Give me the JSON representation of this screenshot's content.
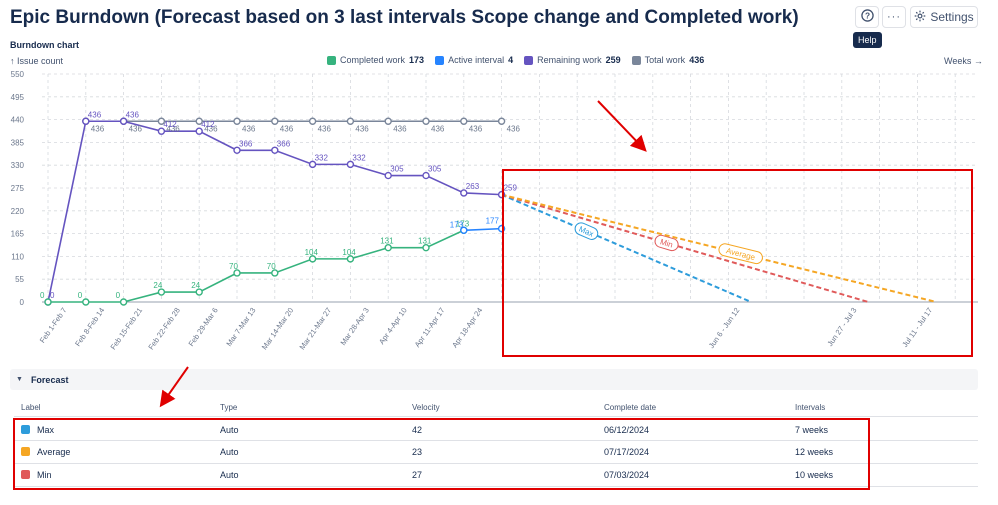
{
  "header": {
    "title": "Epic Burndown (Forecast based on 3 last intervals Scope change and Completed work)",
    "help_tooltip": "Help",
    "settings_label": "Settings",
    "more_label": "···"
  },
  "chart_header": {
    "title": "Burndown chart",
    "y_unit": "Issue count",
    "x_unit": "Weeks"
  },
  "legend": [
    {
      "label": "Completed work",
      "value": "173",
      "color": "#36b37e"
    },
    {
      "label": "Active interval",
      "value": "4",
      "color": "#2684ff"
    },
    {
      "label": "Remaining work",
      "value": "259",
      "color": "#6554c0"
    },
    {
      "label": "Total work",
      "value": "436",
      "color": "#7a869a"
    }
  ],
  "chart_data": {
    "type": "line",
    "ylim": [
      0,
      550
    ],
    "yticks": [
      0,
      55,
      110,
      165,
      220,
      275,
      330,
      385,
      440,
      495,
      550
    ],
    "grid": true,
    "categories": [
      "Feb 1-Feb 7",
      "Feb 8-Feb 14",
      "Feb 15-Feb 21",
      "Feb 22-Feb 28",
      "Feb 29-Mar 6",
      "Mar 7-Mar 13",
      "Mar 14-Mar 20",
      "Mar 21-Mar 27",
      "Mar 28-Apr 3",
      "Apr 4-Apr 10",
      "Apr 11-Apr 17",
      "Apr 18-Apr 24"
    ],
    "forecast_categories": [
      "Jun 6 - Jun 12",
      "Jun 27 - Jul 3",
      "Jul 11 - Jul 17"
    ],
    "series": [
      {
        "name": "Total work",
        "color": "#7a869a",
        "x": [
          1,
          2,
          3,
          4,
          5,
          6,
          7,
          8,
          9,
          10,
          11,
          12
        ],
        "values": [
          436,
          436,
          436,
          436,
          436,
          436,
          436,
          436,
          436,
          436,
          436,
          436
        ]
      },
      {
        "name": "Remaining work",
        "color": "#6554c0",
        "x": [
          0,
          1,
          2,
          3,
          4,
          5,
          6,
          7,
          8,
          9,
          10,
          11,
          12
        ],
        "values": [
          0,
          436,
          436,
          412,
          412,
          366,
          366,
          332,
          332,
          305,
          305,
          263,
          259
        ]
      },
      {
        "name": "Completed work",
        "color": "#36b37e",
        "x": [
          0,
          1,
          2,
          3,
          4,
          5,
          6,
          7,
          8,
          9,
          10,
          11
        ],
        "values": [
          0,
          0,
          0,
          24,
          24,
          70,
          70,
          104,
          104,
          131,
          131,
          173
        ]
      },
      {
        "name": "Active interval",
        "color": "#2684ff",
        "x": [
          11,
          12
        ],
        "values": [
          173,
          177
        ]
      }
    ],
    "labels": {
      "total": [
        436,
        436,
        436,
        436,
        436,
        436,
        436,
        436,
        436,
        436,
        436,
        436
      ],
      "remaining": [
        "0",
        "436",
        "436",
        "412",
        "412",
        "366",
        "366",
        "332",
        "332",
        "305",
        "305",
        "263",
        "259"
      ],
      "completed": [
        "0",
        "0",
        "0",
        "24",
        "24",
        "70",
        "70",
        "104",
        "104",
        "131",
        "131",
        "173"
      ],
      "active": [
        "173",
        "177"
      ]
    },
    "forecasts": [
      {
        "name": "Max",
        "color": "#2d9cdb",
        "from_x": 12,
        "from_y": 259,
        "to_x": 18.6,
        "to_y": 0
      },
      {
        "name": "Min",
        "color": "#e05a5a",
        "from_x": 12,
        "from_y": 259,
        "to_x": 21.7,
        "to_y": 0
      },
      {
        "name": "Average",
        "color": "#f5a623",
        "from_x": 12,
        "from_y": 259,
        "to_x": 23.5,
        "to_y": 0
      }
    ]
  },
  "forecast_section": {
    "title": "Forecast",
    "columns": [
      "Label",
      "Type",
      "Velocity",
      "Complete date",
      "Intervals"
    ],
    "rows": [
      {
        "label": "Max",
        "color": "#2d9cdb",
        "type": "Auto",
        "velocity": "42",
        "complete_date": "06/12/2024",
        "intervals": "7 weeks"
      },
      {
        "label": "Average",
        "color": "#f5a623",
        "type": "Auto",
        "velocity": "23",
        "complete_date": "07/17/2024",
        "intervals": "12 weeks"
      },
      {
        "label": "Min",
        "color": "#e05a5a",
        "type": "Auto",
        "velocity": "27",
        "complete_date": "07/03/2024",
        "intervals": "10 weeks"
      }
    ]
  }
}
